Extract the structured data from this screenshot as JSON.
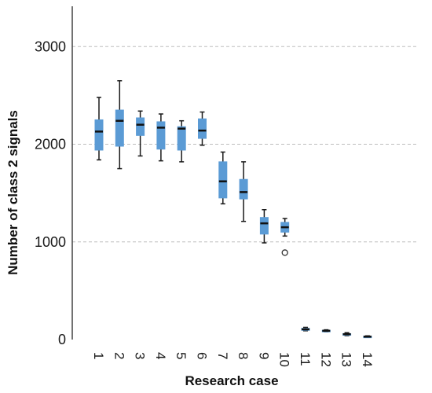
{
  "chart_data": {
    "type": "boxplot",
    "xlabel": "Research case",
    "ylabel": "Number of class 2 signals",
    "ylim": [
      0,
      3300
    ],
    "yticks": [
      0,
      1000,
      2000,
      3000
    ],
    "ytick_labels": [
      "0",
      "1000",
      "2000",
      "3000"
    ],
    "grid": "horizontal dashed at y ticks",
    "box_color": "#5B9BD5",
    "categories": [
      "1",
      "2",
      "3",
      "4",
      "5",
      "6",
      "7",
      "8",
      "9",
      "10",
      "11",
      "12",
      "13",
      "14"
    ],
    "boxes": [
      {
        "min": 1840,
        "q1": 1940,
        "median": 2130,
        "q3": 2250,
        "max": 2480,
        "outliers": []
      },
      {
        "min": 1750,
        "q1": 1980,
        "median": 2240,
        "q3": 2350,
        "max": 2650,
        "outliers": []
      },
      {
        "min": 1880,
        "q1": 2090,
        "median": 2200,
        "q3": 2270,
        "max": 2340,
        "outliers": []
      },
      {
        "min": 1830,
        "q1": 1950,
        "median": 2170,
        "q3": 2230,
        "max": 2310,
        "outliers": []
      },
      {
        "min": 1820,
        "q1": 1940,
        "median": 2160,
        "q3": 2180,
        "max": 2240,
        "outliers": []
      },
      {
        "min": 1990,
        "q1": 2060,
        "median": 2140,
        "q3": 2260,
        "max": 2330,
        "outliers": []
      },
      {
        "min": 1390,
        "q1": 1450,
        "median": 1620,
        "q3": 1820,
        "max": 1920,
        "outliers": []
      },
      {
        "min": 1210,
        "q1": 1440,
        "median": 1510,
        "q3": 1640,
        "max": 1820,
        "outliers": []
      },
      {
        "min": 990,
        "q1": 1080,
        "median": 1190,
        "q3": 1250,
        "max": 1330,
        "outliers": []
      },
      {
        "min": 1060,
        "q1": 1100,
        "median": 1150,
        "q3": 1200,
        "max": 1240,
        "outliers": [
          890
        ]
      },
      {
        "min": 90,
        "q1": 95,
        "median": 105,
        "q3": 115,
        "max": 125,
        "outliers": []
      },
      {
        "min": 80,
        "q1": 85,
        "median": 90,
        "q3": 95,
        "max": 100,
        "outliers": []
      },
      {
        "min": 40,
        "q1": 45,
        "median": 55,
        "q3": 60,
        "max": 70,
        "outliers": []
      },
      {
        "min": 22,
        "q1": 25,
        "median": 30,
        "q3": 35,
        "max": 38,
        "outliers": []
      }
    ]
  }
}
